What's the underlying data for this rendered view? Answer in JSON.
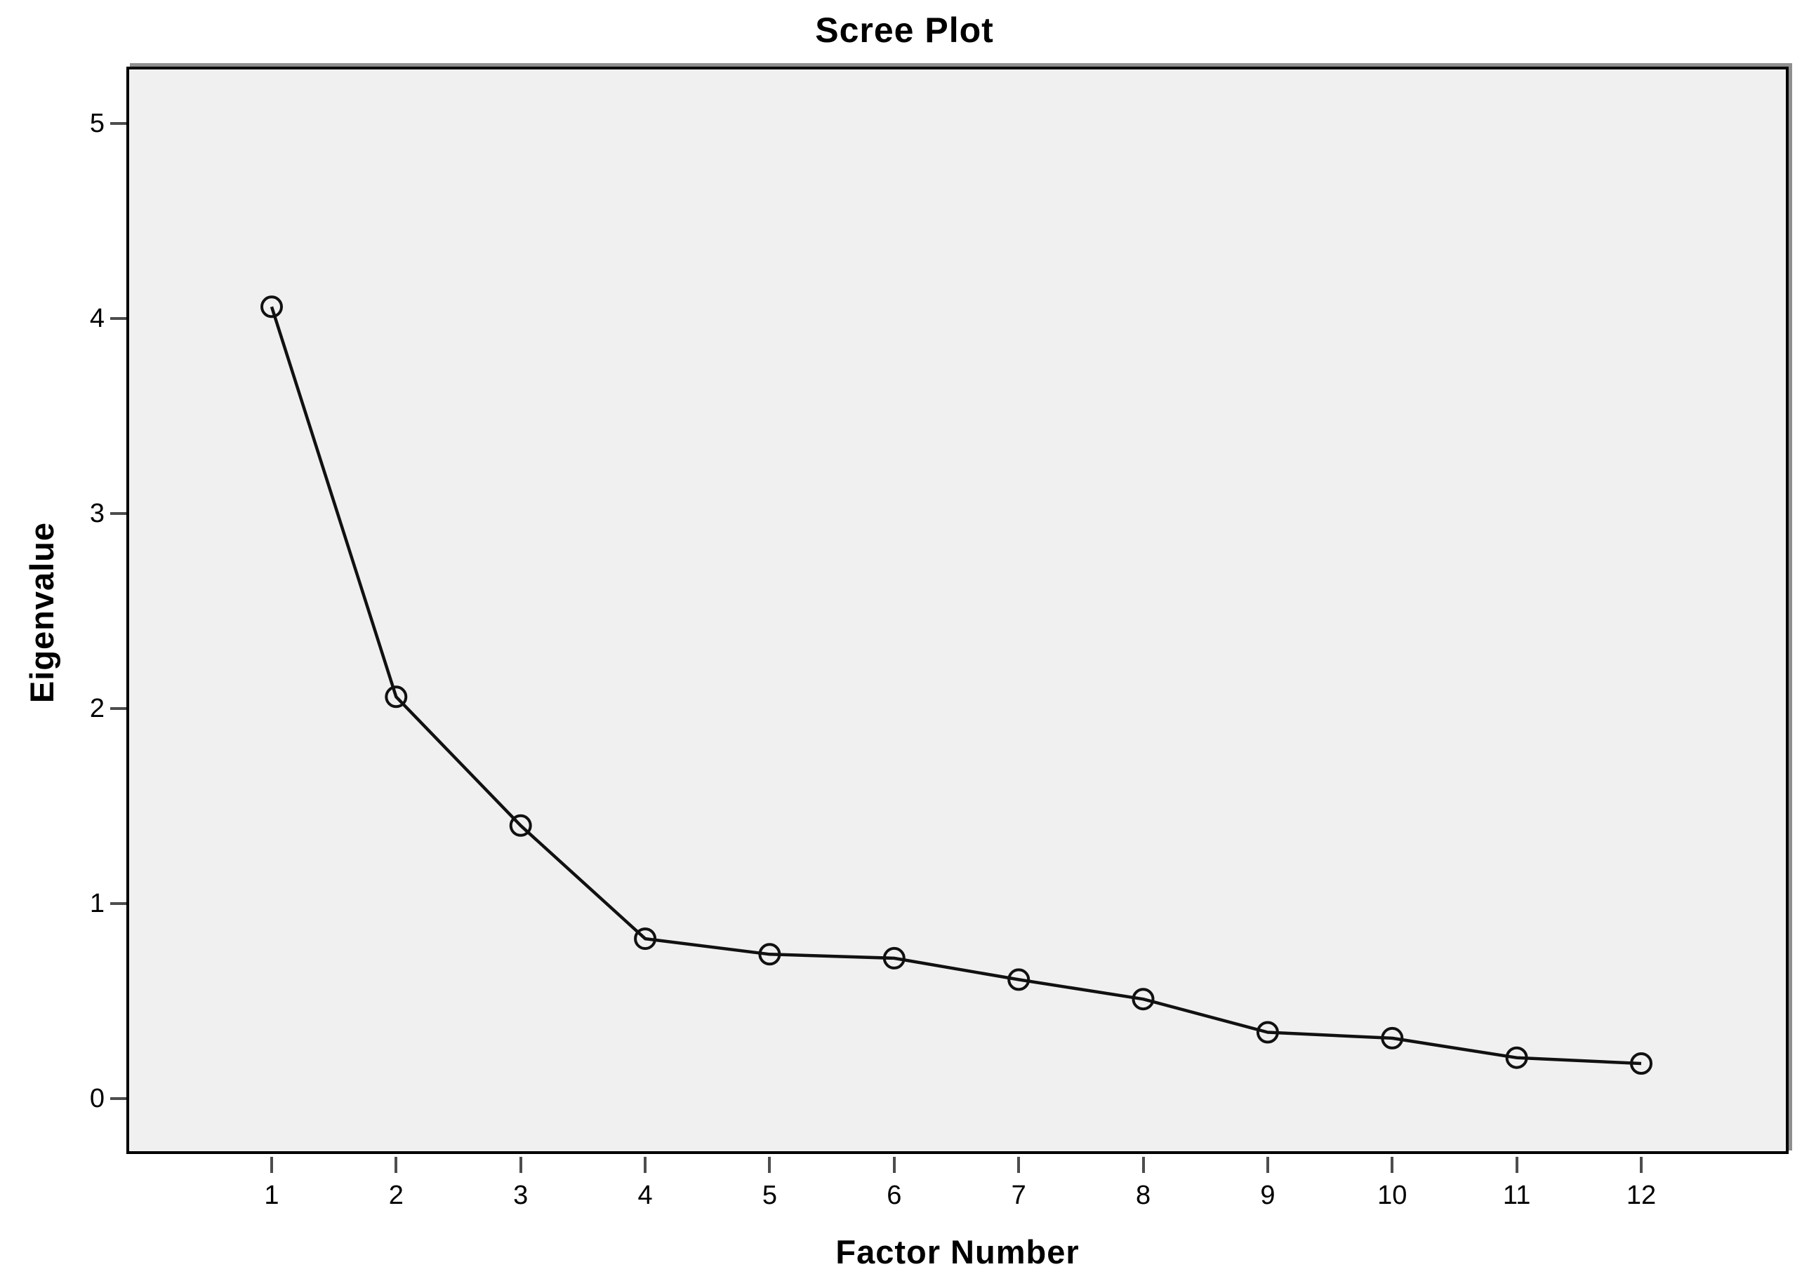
{
  "chart": {
    "title": "Scree Plot",
    "x_axis_label": "Factor Number",
    "y_axis_label": "Eigenvalue"
  },
  "chart_data": {
    "type": "line",
    "title": "Scree Plot",
    "xlabel": "Factor Number",
    "ylabel": "Eigenvalue",
    "categories": [
      1,
      2,
      3,
      4,
      5,
      6,
      7,
      8,
      9,
      10,
      11,
      12
    ],
    "series": [
      {
        "name": "Eigenvalue",
        "values": [
          4.06,
          2.06,
          1.4,
          0.82,
          0.74,
          0.72,
          0.61,
          0.51,
          0.34,
          0.31,
          0.21,
          0.18
        ]
      }
    ],
    "y_ticks": [
      0,
      1,
      2,
      3,
      4,
      5
    ],
    "x_ticks": [
      1,
      2,
      3,
      4,
      5,
      6,
      7,
      8,
      9,
      10,
      11,
      12
    ],
    "xlim": [
      -0.167,
      13.184
    ],
    "ylim": [
      -0.284,
      5.291
    ],
    "grid": false,
    "legend": false,
    "marker": "open-circle",
    "line_style": "solid",
    "colors": {
      "line": "#111111",
      "marker_stroke": "#111111",
      "plot_background": "#f0f0f0",
      "page_background": "#ffffff",
      "frame": "#000000",
      "frame_bevel": "#8f8f8f",
      "tick": "#4d4d4d",
      "text": "#000000"
    }
  }
}
